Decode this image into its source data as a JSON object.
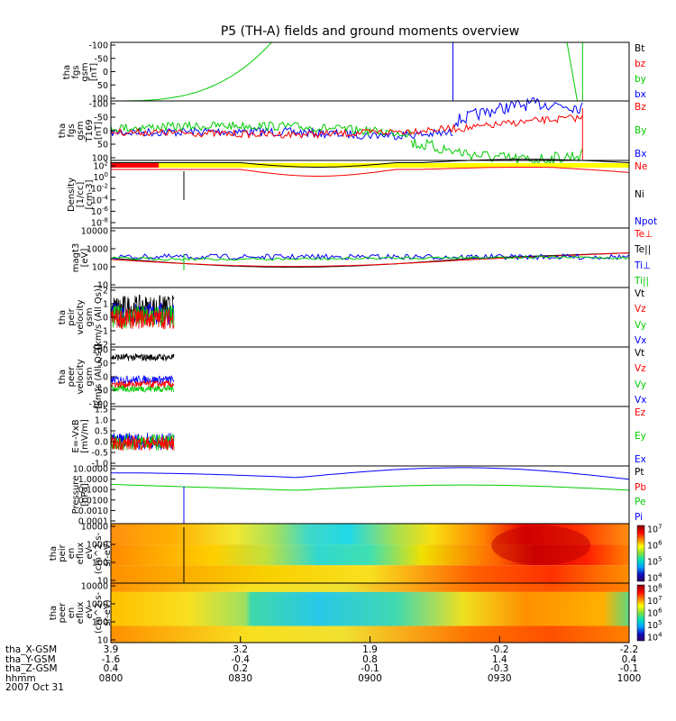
{
  "title": "P5 (TH-A) fields and ground moments overview",
  "date_label": "2007 Oct 31",
  "x_axis": {
    "row_labels": [
      "tha_X-GSM",
      "tha_Y-GSM",
      "tha_Z-GSM",
      "hhmm"
    ],
    "ticks": [
      {
        "x_gsm": "3.9",
        "y_gsm": "-1.6",
        "z_gsm": "0.4",
        "hhmm": "0800"
      },
      {
        "x_gsm": "3.2",
        "y_gsm": "-0.4",
        "z_gsm": "0.2",
        "hhmm": "0830"
      },
      {
        "x_gsm": "1.9",
        "y_gsm": "0.8",
        "z_gsm": "-0.1",
        "hhmm": "0900"
      },
      {
        "x_gsm": "-0.2",
        "y_gsm": "1.4",
        "z_gsm": "-0.3",
        "hhmm": "0930"
      },
      {
        "x_gsm": "-2.2",
        "y_gsm": "0.4",
        "z_gsm": "-0.1",
        "hhmm": "1000"
      }
    ]
  },
  "colors": {
    "black": "#000000",
    "red": "#ff0000",
    "green": "#00cc00",
    "blue": "#0000ff",
    "yellow": "#ffff00"
  },
  "chart_data": [
    {
      "type": "line",
      "panel": "fgs",
      "ylabel": "tha\nfgs\ngsm\n[nT]",
      "ylim": [
        -100,
        100
      ],
      "yticks": [
        -100,
        -50,
        0,
        50,
        100
      ],
      "legend": [
        "Bt",
        "bz",
        "by",
        "bx"
      ],
      "legend_colors": [
        "#000000",
        "#ff0000",
        "#00cc00",
        "#0000ff"
      ]
    },
    {
      "type": "line",
      "panel": "fgs_t169",
      "ylabel": "tha\nfgs\ngsm\nT169\n[nT]",
      "ylim": [
        -100,
        100
      ],
      "yticks": [
        -100,
        -50,
        0,
        50,
        100
      ],
      "legend": [
        "Bz",
        "By",
        "Bx"
      ],
      "legend_colors": [
        "#ff0000",
        "#00cc00",
        "#0000ff"
      ]
    },
    {
      "type": "line",
      "panel": "density",
      "ylabel": "Density\n[1/cc]\n[cm-3]",
      "scale": "log",
      "ylim": [
        -10,
        2
      ],
      "ytick_exp": [
        2,
        0,
        -2,
        -4,
        -6,
        -8
      ],
      "legend": [
        "Ne",
        "Ni",
        "Npot"
      ],
      "legend_colors": [
        "#ff0000",
        "#000000",
        "#0000ff"
      ]
    },
    {
      "type": "line",
      "panel": "temperature",
      "ylabel": "magt3\n[eV]",
      "scale": "log",
      "ylim": [
        10,
        10000
      ],
      "yticks": [
        "10000",
        "1000",
        "100",
        "10"
      ],
      "legend": [
        "Te⊥",
        "Te||",
        "Ti⊥",
        "Ti||"
      ],
      "legend_colors": [
        "#ff0000",
        "#000000",
        "#0000ff",
        "#00cc00"
      ]
    },
    {
      "type": "line",
      "panel": "peir_velocity",
      "ylabel": "tha\npeir\nvelocity\ngsm\n[km/s (All Qs)]",
      "ylim": [
        -2,
        2
      ],
      "yticks": [
        2,
        1,
        0,
        -1,
        -2
      ],
      "legend": [
        "Vt",
        "Vz",
        "Vy",
        "Vx"
      ],
      "legend_colors": [
        "#000000",
        "#ff0000",
        "#00cc00",
        "#0000ff"
      ]
    },
    {
      "type": "line",
      "panel": "peer_velocity",
      "ylabel": "tha\npeer\nvelocity\ngsm\n[km/s (All Qs)]",
      "ylim": [
        -100,
        100
      ],
      "yticks": [
        100,
        50,
        0,
        -50,
        -100
      ],
      "legend": [
        "Vt",
        "Vz",
        "Vy",
        "Vx"
      ],
      "legend_colors": [
        "#000000",
        "#ff0000",
        "#00cc00",
        "#0000ff"
      ]
    },
    {
      "type": "line",
      "panel": "efield",
      "ylabel": "E=-VxB\n[mV/m]",
      "ylim": [
        -1,
        1.5
      ],
      "yticks": [
        "1.5",
        "1.0",
        "0.5",
        "0.0",
        "-0.5",
        "-1.0"
      ],
      "legend": [
        "Ez",
        "Ey",
        "Ex"
      ],
      "legend_colors": [
        "#ff0000",
        "#00cc00",
        "#0000ff"
      ]
    },
    {
      "type": "line",
      "panel": "pressure",
      "ylabel": "Pressure\n[nPa]",
      "scale": "log",
      "ylim": [
        -4,
        1
      ],
      "yticks": [
        "10.0000",
        "1.0000",
        "0.1000",
        "0.0100",
        "0.0010",
        "0.0001"
      ],
      "legend": [
        "Pt",
        "Pb",
        "Pe",
        "Pi"
      ],
      "legend_colors": [
        "#000000",
        "#ff0000",
        "#00cc00",
        "#0000ff"
      ]
    },
    {
      "type": "heatmap",
      "panel": "peir_spec",
      "ylabel": "tha\npeir\nen\neflux\neV\n(cm^2-s-\nsr-eV)",
      "scale": "log",
      "ylim": [
        10,
        20000
      ],
      "yticks": [
        "10000",
        "1000",
        "100",
        "10"
      ],
      "colorbar_exp": [
        4,
        5,
        6,
        7
      ]
    },
    {
      "type": "heatmap",
      "panel": "peer_spec",
      "ylabel": "tha\npeer\nen\neflux\neV\n(cm^2-s-\nsr-eV)",
      "scale": "log",
      "ylim": [
        10,
        20000
      ],
      "yticks": [
        "10000",
        "1000",
        "100",
        "10"
      ],
      "colorbar_exp": [
        4,
        5,
        6,
        7,
        8
      ]
    }
  ]
}
